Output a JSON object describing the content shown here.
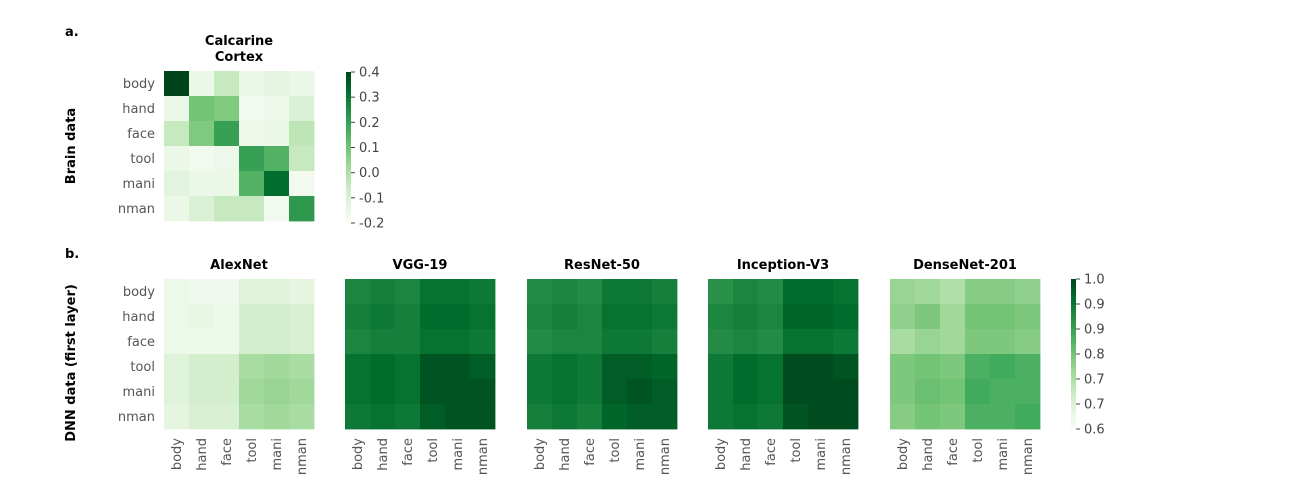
{
  "chart_data": [
    {
      "type": "heatmap",
      "panel": "a.",
      "row_label": "Brain data",
      "title": "Calcarine Cortex",
      "categories": [
        "body",
        "hand",
        "face",
        "tool",
        "mani",
        "nman"
      ],
      "show_x_ticks": false,
      "colorbar": {
        "vmin": -0.2,
        "vmax": 0.4,
        "ticks": [
          "-0.2",
          "-0.1",
          "0.0",
          "0.1",
          "0.2",
          "0.3",
          "0.4"
        ]
      },
      "values": [
        [
          0.4,
          -0.15,
          -0.05,
          -0.15,
          -0.13,
          -0.15
        ],
        [
          -0.15,
          0.1,
          0.08,
          -0.18,
          -0.16,
          -0.1
        ],
        [
          -0.05,
          0.08,
          0.2,
          -0.16,
          -0.15,
          -0.03
        ],
        [
          -0.15,
          -0.18,
          -0.16,
          0.2,
          0.15,
          -0.05
        ],
        [
          -0.12,
          -0.15,
          -0.15,
          0.15,
          0.32,
          -0.18
        ],
        [
          -0.15,
          -0.1,
          -0.05,
          -0.05,
          -0.18,
          0.22
        ]
      ]
    },
    {
      "type": "heatmap",
      "panel": "b.",
      "row_label": "DNN data (first layer)",
      "title": "AlexNet",
      "categories": [
        "body",
        "hand",
        "face",
        "tool",
        "mani",
        "nman"
      ],
      "show_x_ticks": true,
      "colorbar": {
        "vmin": 0.6,
        "vmax": 1.0,
        "ticks": [
          "0.6",
          "0.7",
          "0.7",
          "0.8",
          "0.9",
          "0.9",
          "1.0"
        ]
      },
      "values": [
        [
          0.63,
          0.62,
          0.62,
          0.66,
          0.66,
          0.65
        ],
        [
          0.63,
          0.64,
          0.63,
          0.68,
          0.68,
          0.67
        ],
        [
          0.63,
          0.63,
          0.63,
          0.68,
          0.68,
          0.67
        ],
        [
          0.66,
          0.68,
          0.68,
          0.74,
          0.75,
          0.74
        ],
        [
          0.66,
          0.68,
          0.68,
          0.75,
          0.76,
          0.75
        ],
        [
          0.65,
          0.67,
          0.67,
          0.74,
          0.75,
          0.74
        ]
      ]
    },
    {
      "type": "heatmap",
      "title": "VGG-19",
      "categories": [
        "body",
        "hand",
        "face",
        "tool",
        "mani",
        "nman"
      ],
      "show_x_ticks": true,
      "values": [
        [
          0.91,
          0.92,
          0.91,
          0.94,
          0.94,
          0.93
        ],
        [
          0.92,
          0.93,
          0.92,
          0.95,
          0.95,
          0.94
        ],
        [
          0.91,
          0.92,
          0.92,
          0.94,
          0.94,
          0.93
        ],
        [
          0.94,
          0.95,
          0.94,
          0.98,
          0.98,
          0.97
        ],
        [
          0.94,
          0.95,
          0.94,
          0.98,
          0.98,
          0.98
        ],
        [
          0.93,
          0.94,
          0.93,
          0.97,
          0.98,
          0.98
        ]
      ]
    },
    {
      "type": "heatmap",
      "title": "ResNet-50",
      "categories": [
        "body",
        "hand",
        "face",
        "tool",
        "mani",
        "nman"
      ],
      "show_x_ticks": true,
      "values": [
        [
          0.9,
          0.91,
          0.9,
          0.93,
          0.93,
          0.92
        ],
        [
          0.91,
          0.92,
          0.91,
          0.94,
          0.94,
          0.93
        ],
        [
          0.9,
          0.91,
          0.91,
          0.93,
          0.93,
          0.92
        ],
        [
          0.93,
          0.94,
          0.93,
          0.97,
          0.97,
          0.96
        ],
        [
          0.93,
          0.94,
          0.93,
          0.97,
          0.98,
          0.97
        ],
        [
          0.92,
          0.93,
          0.92,
          0.96,
          0.97,
          0.97
        ]
      ]
    },
    {
      "type": "heatmap",
      "title": "Inception-V3",
      "categories": [
        "body",
        "hand",
        "face",
        "tool",
        "mani",
        "nman"
      ],
      "show_x_ticks": true,
      "values": [
        [
          0.89,
          0.91,
          0.9,
          0.95,
          0.95,
          0.94
        ],
        [
          0.91,
          0.92,
          0.91,
          0.96,
          0.96,
          0.95
        ],
        [
          0.9,
          0.91,
          0.9,
          0.94,
          0.94,
          0.93
        ],
        [
          0.93,
          0.95,
          0.94,
          0.99,
          0.99,
          0.98
        ],
        [
          0.93,
          0.95,
          0.94,
          0.99,
          0.99,
          0.99
        ],
        [
          0.93,
          0.94,
          0.93,
          0.98,
          0.99,
          0.99
        ]
      ]
    },
    {
      "type": "heatmap",
      "title": "DenseNet-201",
      "categories": [
        "body",
        "hand",
        "face",
        "tool",
        "mani",
        "nman"
      ],
      "show_x_ticks": true,
      "values": [
        [
          0.76,
          0.75,
          0.73,
          0.78,
          0.78,
          0.77
        ],
        [
          0.77,
          0.79,
          0.75,
          0.8,
          0.8,
          0.79
        ],
        [
          0.74,
          0.76,
          0.75,
          0.79,
          0.79,
          0.78
        ],
        [
          0.79,
          0.8,
          0.79,
          0.84,
          0.85,
          0.84
        ],
        [
          0.79,
          0.81,
          0.8,
          0.85,
          0.84,
          0.84
        ],
        [
          0.78,
          0.8,
          0.79,
          0.84,
          0.84,
          0.85
        ]
      ]
    }
  ]
}
